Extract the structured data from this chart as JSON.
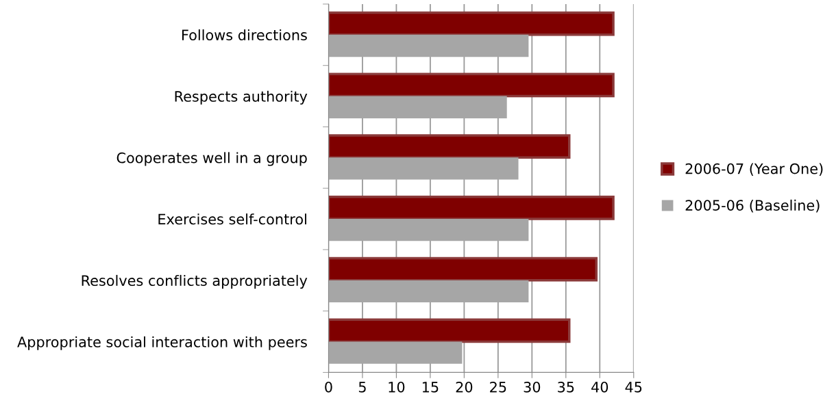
{
  "chart_data": {
    "type": "bar",
    "orientation": "horizontal",
    "categories": [
      "Follows directions",
      "Respects authority",
      "Cooperates well in a group",
      "Exercises self-control",
      "Resolves conflicts appropriately",
      "Appropriate social interaction with peers"
    ],
    "series": [
      {
        "name": "2006-07 (Year One)",
        "color": "#7f0000",
        "values": [
          42,
          42,
          35.5,
          42,
          39.5,
          35.5
        ]
      },
      {
        "name": "2005-06 (Baseline)",
        "color": "#a6a6a6",
        "values": [
          29.5,
          26.3,
          28,
          29.5,
          29.5,
          19.7
        ]
      }
    ],
    "xlim": [
      0,
      45
    ],
    "xticks": [
      0,
      5,
      10,
      15,
      20,
      25,
      30,
      35,
      40,
      45
    ],
    "grid": "x",
    "legend": "right"
  }
}
